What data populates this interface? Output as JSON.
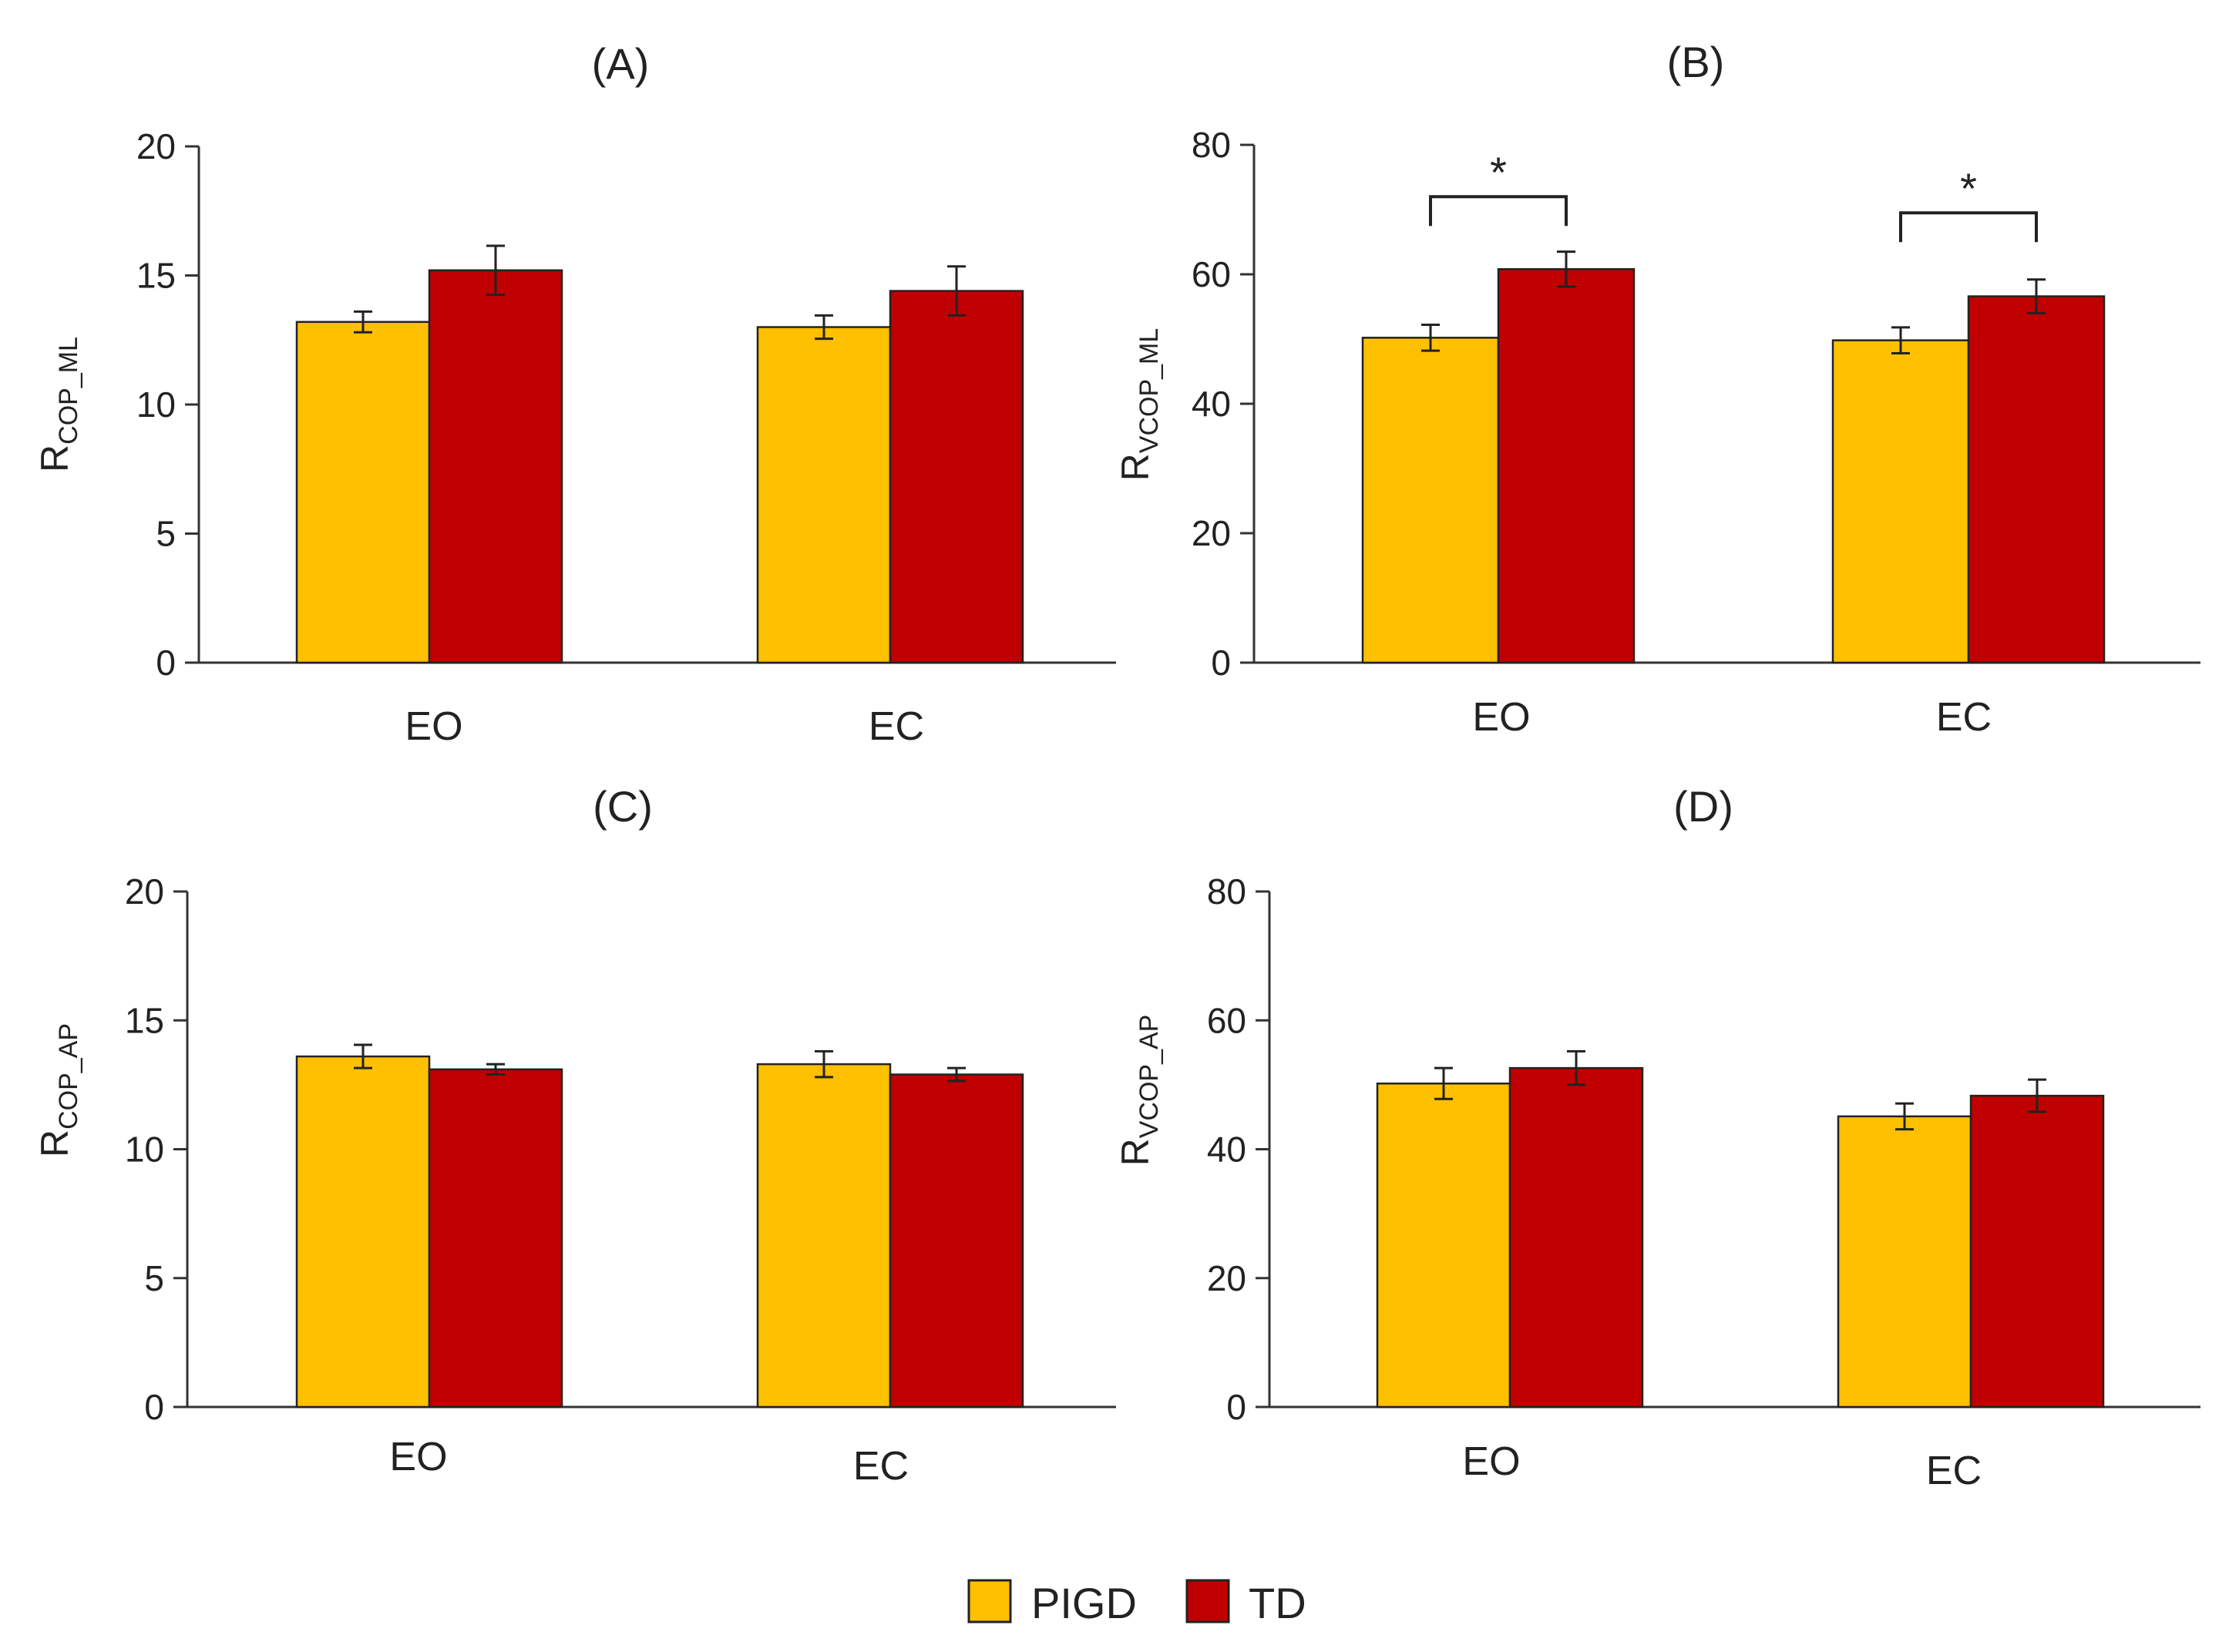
{
  "legend": {
    "entries": [
      {
        "label": "PIGD",
        "color": "#FFC000"
      },
      {
        "label": "TD",
        "color": "#C00000"
      }
    ]
  },
  "chart_data": [
    {
      "id": "A",
      "type": "bar",
      "title": "(A)",
      "ylabel_main": "R",
      "ylabel_sub": "COP_ML",
      "ylim": [
        0,
        20
      ],
      "yticks": [
        0,
        5,
        10,
        15,
        20
      ],
      "categories": [
        "EO",
        "EC"
      ],
      "series": [
        {
          "name": "PIGD",
          "color": "#FFC000",
          "values": [
            13.2,
            13.0
          ],
          "errors": [
            0.4,
            0.45
          ]
        },
        {
          "name": "TD",
          "color": "#C00000",
          "values": [
            15.2,
            14.4
          ],
          "errors": [
            0.95,
            0.95
          ]
        }
      ],
      "significance": []
    },
    {
      "id": "B",
      "type": "bar",
      "title": "(B)",
      "ylabel_main": "R",
      "ylabel_sub": "VCOP_ML",
      "ylim": [
        0,
        80
      ],
      "yticks": [
        0,
        20,
        40,
        60,
        80
      ],
      "categories": [
        "EO",
        "EC"
      ],
      "series": [
        {
          "name": "PIGD",
          "color": "#FFC000",
          "values": [
            50.2,
            49.8
          ],
          "errors": [
            2.0,
            2.0
          ]
        },
        {
          "name": "TD",
          "color": "#C00000",
          "values": [
            60.8,
            56.6
          ],
          "errors": [
            2.7,
            2.6
          ]
        }
      ],
      "significance": [
        {
          "category": "EO",
          "label": "*",
          "level": 72
        },
        {
          "category": "EC",
          "label": "*",
          "level": 69.5
        }
      ]
    },
    {
      "id": "C",
      "type": "bar",
      "title": "(C)",
      "ylabel_main": "R",
      "ylabel_sub": "COP_AP",
      "ylim": [
        0,
        20
      ],
      "yticks": [
        0,
        5,
        10,
        15,
        20
      ],
      "categories": [
        "EO",
        "EC"
      ],
      "series": [
        {
          "name": "PIGD",
          "color": "#FFC000",
          "values": [
            13.6,
            13.3
          ],
          "errors": [
            0.45,
            0.5
          ]
        },
        {
          "name": "TD",
          "color": "#C00000",
          "values": [
            13.1,
            12.9
          ],
          "errors": [
            0.2,
            0.25
          ]
        }
      ],
      "significance": []
    },
    {
      "id": "D",
      "type": "bar",
      "title": "(D)",
      "ylabel_main": "R",
      "ylabel_sub": "VCOP_AP",
      "ylim": [
        0,
        80
      ],
      "yticks": [
        0,
        20,
        40,
        60,
        80
      ],
      "categories": [
        "EO",
        "EC"
      ],
      "series": [
        {
          "name": "PIGD",
          "color": "#FFC000",
          "values": [
            50.2,
            45.1
          ],
          "errors": [
            2.4,
            2.0
          ]
        },
        {
          "name": "TD",
          "color": "#C00000",
          "values": [
            52.6,
            48.3
          ],
          "errors": [
            2.6,
            2.5
          ]
        }
      ],
      "significance": []
    }
  ]
}
